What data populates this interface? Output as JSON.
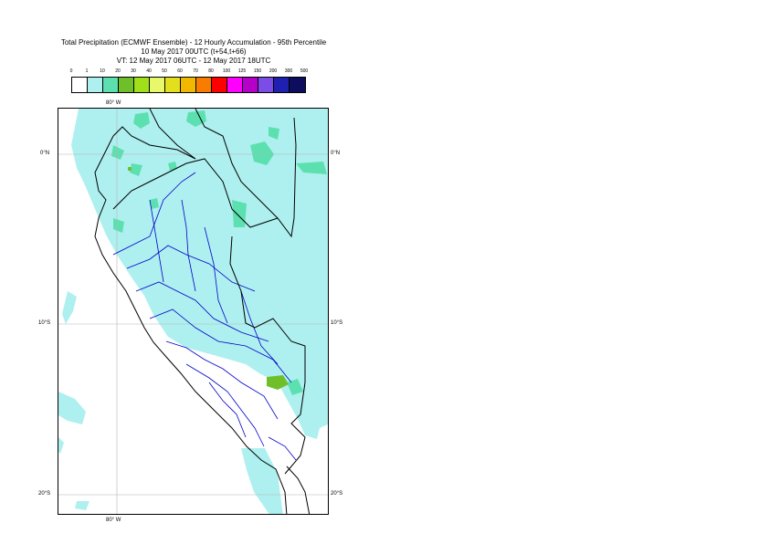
{
  "header": {
    "title_line1": "Total Precipitation (ECMWF Ensemble) - 12 Hourly Accumulation - 95th Percentile",
    "title_line2": "10 May 2017 00UTC (t+54,t+66)",
    "title_line3": "VT: 12 May 2017 06UTC - 12 May 2017 18UTC"
  },
  "legend": {
    "labels": [
      "0",
      "1",
      "10",
      "20",
      "30",
      "40",
      "50",
      "60",
      "70",
      "80",
      "100",
      "125",
      "150",
      "200",
      "300",
      "500"
    ],
    "colors": [
      "#ffffff",
      "#aef0ef",
      "#5ce0b0",
      "#6fbf2a",
      "#9fe01a",
      "#e8f86a",
      "#e3df1d",
      "#f2b800",
      "#f77c00",
      "#ff0000",
      "#ff00ff",
      "#b400c8",
      "#7b4de6",
      "#2020b0",
      "#0d0d60"
    ]
  },
  "axes": {
    "top_lon": "80° W",
    "bottom_lon": "80° W",
    "lat_labels": [
      "0°N",
      "10°S",
      "20°S"
    ]
  },
  "map": {
    "colors": {
      "light_precip": "#aef0ef",
      "moderate_precip": "#5ce0b0",
      "heavy_precip": "#6fbf2a",
      "country_border": "#000000",
      "region_border": "#0000cc",
      "grid": "#b4b4b4"
    }
  }
}
